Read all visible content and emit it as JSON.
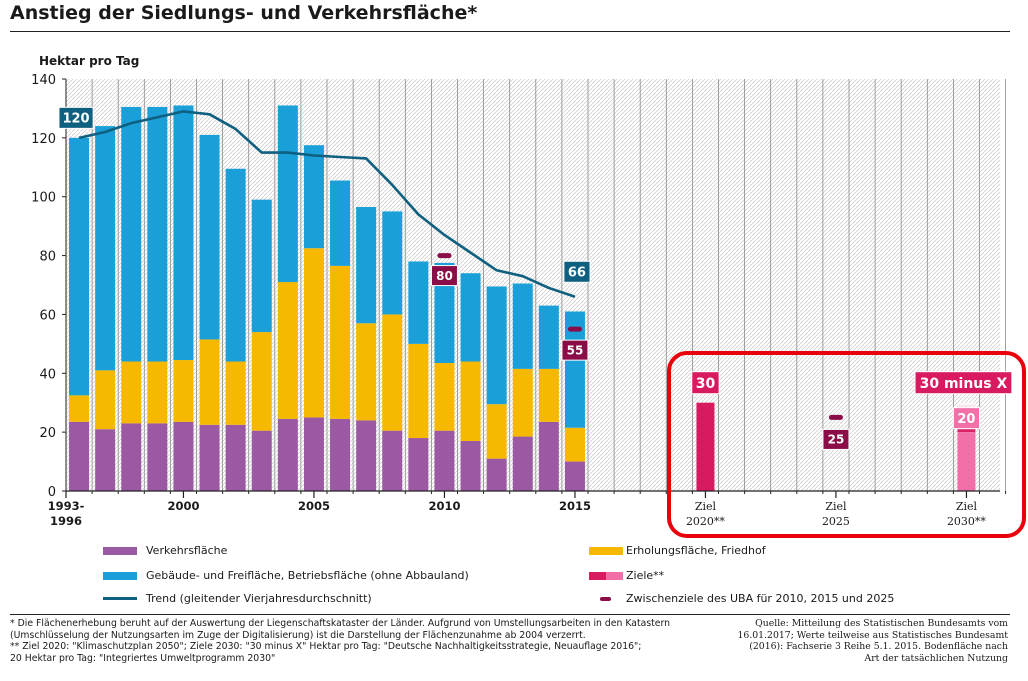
{
  "header": {
    "title": "Anstieg der Siedlungs- und Verkehrsfläche*"
  },
  "chart_data": {
    "type": "bar",
    "stacked": true,
    "ylabel": "Hektar pro Tag",
    "ylim": [
      0,
      140
    ],
    "yticks": [
      0,
      20,
      40,
      60,
      80,
      100,
      120,
      140
    ],
    "grid": "vertical hatch columns",
    "categories": [
      "1993-1996",
      "1997",
      "1998",
      "1999",
      "2000",
      "2001",
      "2002",
      "2003",
      "2004",
      "2005",
      "2006",
      "2007",
      "2008",
      "2009",
      "2010",
      "2011",
      "2012",
      "2013",
      "2014",
      "2015"
    ],
    "xtick_labels": [
      {
        "category": "1993-1996",
        "lines": [
          "1993-",
          "1996"
        ]
      },
      {
        "category": "2000",
        "lines": [
          "2000"
        ]
      },
      {
        "category": "2005",
        "lines": [
          "2005"
        ]
      },
      {
        "category": "2010",
        "lines": [
          "2010"
        ]
      },
      {
        "category": "2015",
        "lines": [
          "2015"
        ]
      }
    ],
    "series": [
      {
        "name": "Verkehrsfläche",
        "color": "#9b59a3",
        "values": [
          23.5,
          21,
          23,
          23,
          23.5,
          22.5,
          22.5,
          20.5,
          24.5,
          25,
          24.5,
          24,
          20.5,
          18,
          20.5,
          17,
          11,
          18.5,
          23.5,
          10
        ]
      },
      {
        "name": "Erholungsfläche, Friedhof",
        "color": "#f6b800",
        "values": [
          9,
          20,
          21,
          21,
          21,
          29,
          21.5,
          33.5,
          46.5,
          57.5,
          52,
          33,
          39.5,
          32,
          23,
          27,
          18.5,
          23,
          18,
          11.5
        ]
      },
      {
        "name": "Gebäude- und Freifläche, Betriebsfläche (ohne Abbauland)",
        "color": "#1a9fd9",
        "values": [
          87.5,
          83,
          86.5,
          86.5,
          86.5,
          69.5,
          65.5,
          45,
          60,
          35,
          29,
          39.5,
          35,
          28,
          34,
          30,
          40,
          29,
          21.5,
          39.5
        ]
      }
    ],
    "trend": {
      "name": "Trend (gleitender Vierjahresdurchschnitt)",
      "color": "#0e5f80",
      "values": [
        120,
        122,
        125,
        127,
        129,
        128,
        123,
        115,
        115,
        114,
        113.5,
        113,
        104,
        94,
        87,
        81,
        75,
        73,
        69,
        66
      ]
    },
    "annotations": [
      {
        "category": "1993-1996",
        "text": "120",
        "value": 120,
        "color": "#0e5f80"
      },
      {
        "category": "2015",
        "text": "66",
        "value": 66,
        "color": "#0e5f80"
      }
    ],
    "interim_targets": {
      "name": "Zwischenziele des UBA für 2010, 2015 und 2025",
      "color": "#8b0d47",
      "items": [
        {
          "label": "Ziel 2010",
          "value": 80,
          "text": "80"
        },
        {
          "label": "Ziel 2015",
          "value": 55,
          "text": "55"
        },
        {
          "label": "Ziel 2025",
          "value": 25,
          "text": "25"
        }
      ]
    },
    "targets": {
      "name": "Ziele**",
      "items": [
        {
          "label_lines": [
            "Ziel",
            "2020**"
          ],
          "value": 30,
          "text": "30",
          "color": "#d81b60"
        },
        {
          "label_lines": [
            "Ziel",
            "2025"
          ],
          "value": null,
          "text": "",
          "color": "#d81b60"
        },
        {
          "label_lines": [
            "Ziel",
            "2030**"
          ],
          "value": 30,
          "value_low": 20,
          "text": "30 minus X",
          "text_low": "20",
          "color": "#d81b60",
          "color_low": "#f36fa8"
        }
      ]
    }
  },
  "legend": [
    {
      "key": "verkehr",
      "label": "Verkehrsfläche"
    },
    {
      "key": "erholung",
      "label": "Erholungsfläche, Friedhof"
    },
    {
      "key": "gebaeude",
      "label": "Gebäude- und Freifläche, Betriebsfläche (ohne Abbauland)"
    },
    {
      "key": "ziele",
      "label": "Ziele**"
    },
    {
      "key": "trend",
      "label": "Trend (gleitender Vierjahresdurchschnitt)"
    },
    {
      "key": "zwischenziele",
      "label": "Zwischenziele des UBA für 2010, 2015 und 2025"
    }
  ],
  "footnotes": {
    "left": "* Die Flächenerhebung beruht auf der Auswertung der Liegenschaftskataster der Länder. Aufgrund von Umstellungsarbeiten in den Katastern\n(Umschlüsselung der Nutzungsarten im Zuge der Digitalisierung) ist die Darstellung der Flächenzunahme ab 2004 verzerrt.\n** Ziel 2020: \"Klimaschutzplan 2050\"; Ziele 2030: \"30 minus X\" Hektar pro Tag: \"Deutsche Nachhaltigkeitsstrategie, Neuauflage 2016\";\n20 Hektar pro Tag: \"Integriertes Umweltprogramm 2030\"",
    "source": "Quelle: Mitteilung des Statistischen Bundesamts vom\n16.01.2017; Werte teilweise aus Statistisches Bundesamt\n(2016): Fachserie 3 Reihe 5.1. 2015. Bodenfläche nach\nArt der tatsächlichen Nutzung"
  },
  "highlight": {
    "color": "#e8000b"
  }
}
